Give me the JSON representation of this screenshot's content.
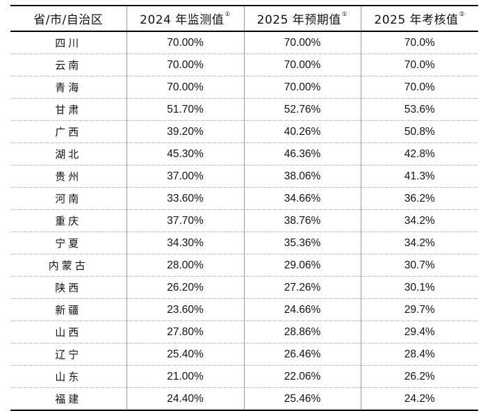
{
  "header": {
    "col1": "省/市/自治区",
    "col2": "2024 年监测值",
    "col2_mark": "①",
    "col3": "2025 年预期值",
    "col3_mark": "①",
    "col4": "2025 年考核值",
    "col4_mark": "②"
  },
  "rows": [
    {
      "region": "四川",
      "v2024": "70.00%",
      "e2025": "70.00%",
      "t2025": "70.0%"
    },
    {
      "region": "云南",
      "v2024": "70.00%",
      "e2025": "70.00%",
      "t2025": "70.0%"
    },
    {
      "region": "青海",
      "v2024": "70.00%",
      "e2025": "70.00%",
      "t2025": "70.0%"
    },
    {
      "region": "甘肃",
      "v2024": "51.70%",
      "e2025": "52.76%",
      "t2025": "53.6%"
    },
    {
      "region": "广西",
      "v2024": "39.20%",
      "e2025": "40.26%",
      "t2025": "50.8%"
    },
    {
      "region": "湖北",
      "v2024": "45.30%",
      "e2025": "46.36%",
      "t2025": "42.8%"
    },
    {
      "region": "贵州",
      "v2024": "37.00%",
      "e2025": "38.06%",
      "t2025": "41.3%"
    },
    {
      "region": "河南",
      "v2024": "33.60%",
      "e2025": "34.66%",
      "t2025": "36.2%"
    },
    {
      "region": "重庆",
      "v2024": "37.70%",
      "e2025": "38.76%",
      "t2025": "34.2%"
    },
    {
      "region": "宁夏",
      "v2024": "34.30%",
      "e2025": "35.36%",
      "t2025": "34.2%"
    },
    {
      "region": "内蒙古",
      "v2024": "28.00%",
      "e2025": "29.06%",
      "t2025": "30.7%"
    },
    {
      "region": "陕西",
      "v2024": "26.20%",
      "e2025": "27.26%",
      "t2025": "30.1%"
    },
    {
      "region": "新疆",
      "v2024": "23.60%",
      "e2025": "24.66%",
      "t2025": "29.7%"
    },
    {
      "region": "山西",
      "v2024": "27.80%",
      "e2025": "28.86%",
      "t2025": "29.4%"
    },
    {
      "region": "辽宁",
      "v2024": "25.40%",
      "e2025": "26.46%",
      "t2025": "28.4%"
    },
    {
      "region": "山东",
      "v2024": "21.00%",
      "e2025": "22.06%",
      "t2025": "26.2%"
    },
    {
      "region": "福建",
      "v2024": "24.40%",
      "e2025": "25.46%",
      "t2025": "24.2%"
    }
  ]
}
